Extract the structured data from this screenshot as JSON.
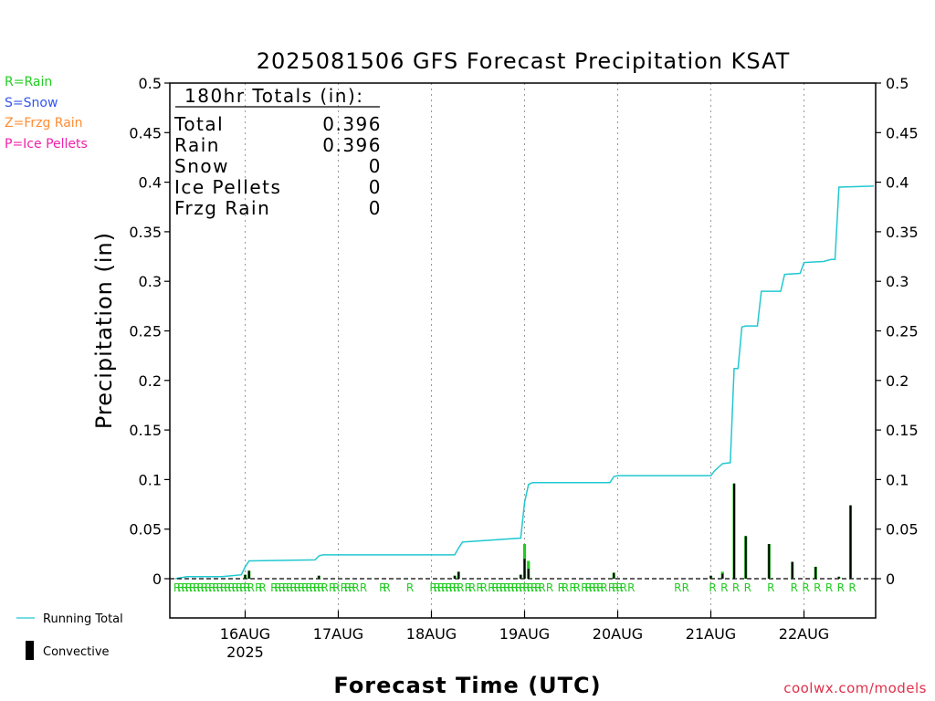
{
  "title": "2025081506 GFS Forecast Precipitation KSAT",
  "ylabel": "Precipitation (in)",
  "xlabel": "Forecast Time (UTC)",
  "credit": "coolwx.com/models",
  "type_legend": [
    {
      "label": "R=Rain",
      "color": "#22cc22"
    },
    {
      "label": "S=Snow",
      "color": "#3355ee"
    },
    {
      "label": "Z=Frzg Rain",
      "color": "#ff8c33"
    },
    {
      "label": "P=Ice Pellets",
      "color": "#ee22aa"
    }
  ],
  "totals": {
    "header": "180hr Totals (in):",
    "rows": [
      {
        "label": "Total",
        "value": "0.396"
      },
      {
        "label": "Rain",
        "value": "0.396"
      },
      {
        "label": "Snow",
        "value": "0"
      },
      {
        "label": "Ice Pellets",
        "value": "0"
      },
      {
        "label": "Frzg Rain",
        "value": "0"
      }
    ]
  },
  "bottom_legend": {
    "running_total": "Running Total",
    "convective": "Convective"
  },
  "colors": {
    "running_total": "#22c8d0",
    "rain": "#22cc22",
    "convective": "#000000",
    "grid": "#999999"
  },
  "chart_data": {
    "type": "bar",
    "x_unit": "forecast hour from 2025-08-15 06Z",
    "x_range": [
      0,
      180
    ],
    "ylim": [
      0,
      0.5
    ],
    "yticks": [
      "0",
      "0.05",
      "0.1",
      "0.15",
      "0.2",
      "0.25",
      "0.3",
      "0.35",
      "0.4",
      "0.45",
      "0.5"
    ],
    "xticks": [
      {
        "hour": 18,
        "label": "16AUG",
        "sublabel": "2025"
      },
      {
        "hour": 42,
        "label": "17AUG"
      },
      {
        "hour": 66,
        "label": "18AUG"
      },
      {
        "hour": 90,
        "label": "19AUG"
      },
      {
        "hour": 114,
        "label": "20AUG"
      },
      {
        "hour": 138,
        "label": "21AUG"
      },
      {
        "hour": 162,
        "label": "22AUG"
      }
    ],
    "precip_bars": [
      {
        "hour": 18,
        "total": 0.004,
        "convective": 0.004
      },
      {
        "hour": 19,
        "total": 0.008,
        "convective": 0.008
      },
      {
        "hour": 37,
        "total": 0.003,
        "convective": 0.003
      },
      {
        "hour": 72,
        "total": 0.003,
        "convective": 0.003
      },
      {
        "hour": 73,
        "total": 0.007,
        "convective": 0.007
      },
      {
        "hour": 89,
        "total": 0.004,
        "convective": 0.004
      },
      {
        "hour": 90,
        "total": 0.035,
        "convective": 0.02
      },
      {
        "hour": 91,
        "total": 0.018,
        "convective": 0.01
      },
      {
        "hour": 113,
        "total": 0.006,
        "convective": 0.006
      },
      {
        "hour": 138,
        "total": 0.003,
        "convective": 0.003
      },
      {
        "hour": 141,
        "total": 0.007,
        "convective": 0.005
      },
      {
        "hour": 144,
        "total": 0.096,
        "convective": 0.096
      },
      {
        "hour": 147,
        "total": 0.043,
        "convective": 0.043
      },
      {
        "hour": 153,
        "total": 0.035,
        "convective": 0.035
      },
      {
        "hour": 159,
        "total": 0.017,
        "convective": 0.017
      },
      {
        "hour": 165,
        "total": 0.012,
        "convective": 0.012
      },
      {
        "hour": 171,
        "total": 0.002,
        "convective": 0.002
      },
      {
        "hour": 174,
        "total": 0.074,
        "convective": 0.074
      }
    ],
    "running_total": [
      [
        0,
        0
      ],
      [
        3,
        0.002
      ],
      [
        12,
        0.002
      ],
      [
        17,
        0.004
      ],
      [
        18,
        0.012
      ],
      [
        19,
        0.018
      ],
      [
        36,
        0.019
      ],
      [
        37,
        0.023
      ],
      [
        38,
        0.024
      ],
      [
        72,
        0.024
      ],
      [
        73,
        0.031
      ],
      [
        74,
        0.037
      ],
      [
        89,
        0.041
      ],
      [
        90,
        0.077
      ],
      [
        91,
        0.095
      ],
      [
        92,
        0.097
      ],
      [
        112,
        0.097
      ],
      [
        113,
        0.103
      ],
      [
        114,
        0.104
      ],
      [
        138,
        0.104
      ],
      [
        139,
        0.109
      ],
      [
        141,
        0.116
      ],
      [
        143,
        0.117
      ],
      [
        144,
        0.212
      ],
      [
        145,
        0.212
      ],
      [
        146,
        0.254
      ],
      [
        147,
        0.255
      ],
      [
        150,
        0.255
      ],
      [
        151,
        0.29
      ],
      [
        156,
        0.29
      ],
      [
        157,
        0.307
      ],
      [
        161,
        0.308
      ],
      [
        162,
        0.319
      ],
      [
        167,
        0.32
      ],
      [
        169,
        0.322
      ],
      [
        170,
        0.322
      ],
      [
        171,
        0.395
      ],
      [
        180,
        0.396
      ]
    ],
    "type_markers": {
      "label": "R",
      "hours": [
        0,
        1,
        2,
        3,
        4,
        5,
        6,
        7,
        8,
        9,
        10,
        11,
        12,
        13,
        14,
        15,
        16,
        17,
        18,
        19,
        21,
        22,
        25,
        26,
        27,
        28,
        29,
        30,
        31,
        32,
        33,
        34,
        35,
        36,
        37,
        38,
        40,
        41,
        43,
        44,
        45,
        46,
        48,
        53,
        54,
        60,
        66,
        67,
        68,
        69,
        70,
        71,
        72,
        73,
        75,
        76,
        78,
        79,
        81,
        82,
        83,
        84,
        85,
        86,
        87,
        88,
        89,
        90,
        91,
        92,
        93,
        94,
        96,
        99,
        100,
        102,
        103,
        105,
        106,
        107,
        108,
        109,
        110,
        112,
        113,
        114,
        115,
        117,
        129,
        131,
        138,
        141,
        144,
        147,
        153,
        159,
        162,
        165,
        168,
        171,
        174
      ]
    }
  }
}
